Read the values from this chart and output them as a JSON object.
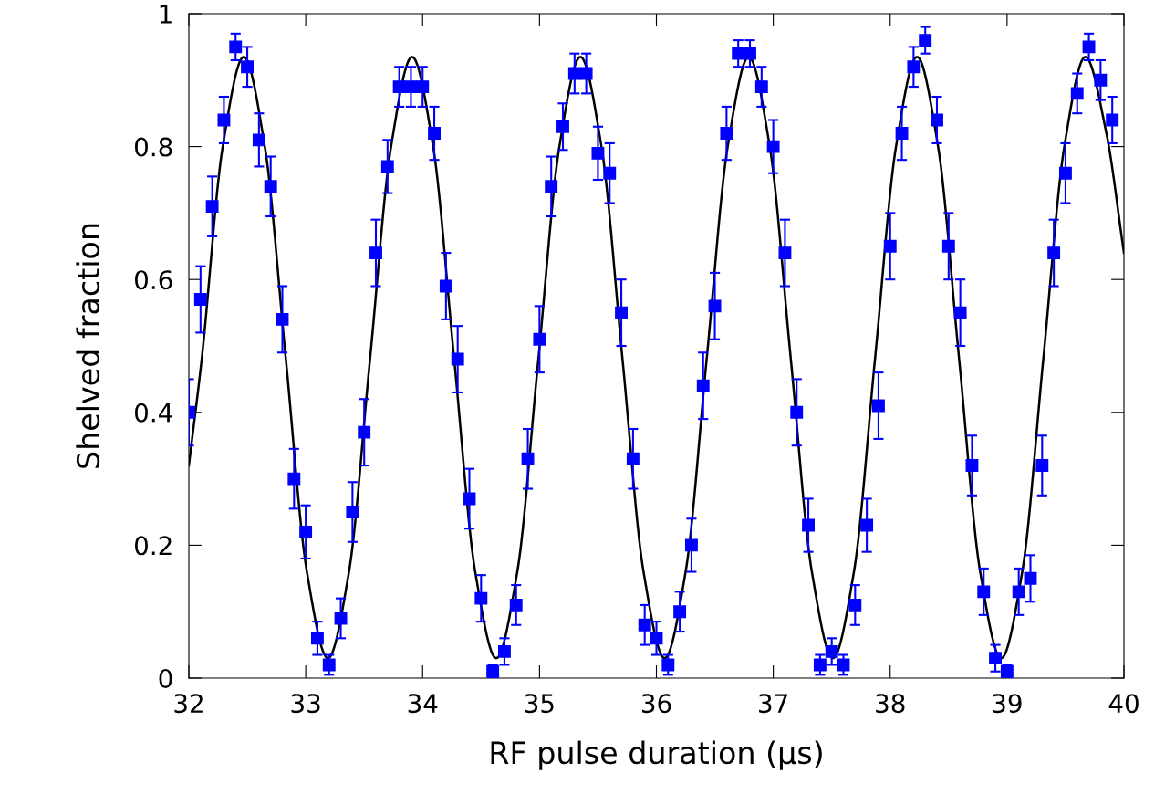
{
  "chart_data": {
    "type": "scatter",
    "xlabel": "RF pulse duration (μs)",
    "ylabel": "Shelved fraction",
    "xlim": [
      32,
      40
    ],
    "xticks": [
      32,
      33,
      34,
      35,
      36,
      37,
      38,
      39,
      40
    ],
    "ylim": [
      0,
      1
    ],
    "yticks": [
      0,
      {
        "value": 0.2,
        "label": "0.2"
      },
      {
        "value": 0.4,
        "label": "0.4"
      },
      {
        "value": 0.6,
        "label": "0.6"
      },
      {
        "value": 0.8,
        "label": "0.8"
      },
      1
    ],
    "grid": false,
    "legend": false,
    "series": [
      {
        "color": "#0000ff",
        "marker": "square",
        "x": [
          32.0,
          32.1,
          32.2,
          32.3,
          32.4,
          32.5,
          32.6,
          32.7,
          32.8,
          32.9,
          33.0,
          33.1,
          33.2,
          33.3,
          33.4,
          33.5,
          33.6,
          33.7,
          33.8,
          33.9,
          34.0,
          34.1,
          34.2,
          34.3,
          34.4,
          34.5,
          34.6,
          34.7,
          34.8,
          34.9,
          35.0,
          35.1,
          35.2,
          35.3,
          35.4,
          35.5,
          35.6,
          35.7,
          35.8,
          35.9,
          36.0,
          36.1,
          36.2,
          36.3,
          36.4,
          36.5,
          36.6,
          36.7,
          36.8,
          36.9,
          37.0,
          37.1,
          37.2,
          37.3,
          37.4,
          37.5,
          37.6,
          37.7,
          37.8,
          37.9,
          38.0,
          38.1,
          38.2,
          38.3,
          38.4,
          38.5,
          38.6,
          38.7,
          38.8,
          38.9,
          39.0,
          39.1,
          39.2,
          39.3,
          39.4,
          39.5,
          39.6,
          39.7,
          39.8,
          39.9
        ],
        "values": [
          0.4,
          0.57,
          0.71,
          0.84,
          0.95,
          0.92,
          0.81,
          0.74,
          0.54,
          0.3,
          0.22,
          0.06,
          0.02,
          0.09,
          0.25,
          0.37,
          0.64,
          0.77,
          0.89,
          0.89,
          0.89,
          0.82,
          0.59,
          0.48,
          0.27,
          0.12,
          0.01,
          0.04,
          0.11,
          0.33,
          0.51,
          0.74,
          0.83,
          0.91,
          0.91,
          0.79,
          0.76,
          0.55,
          0.33,
          0.08,
          0.06,
          0.02,
          0.1,
          0.2,
          0.44,
          0.56,
          0.82,
          0.94,
          0.94,
          0.89,
          0.8,
          0.64,
          0.4,
          0.23,
          0.02,
          0.04,
          0.02,
          0.11,
          0.23,
          0.41,
          0.65,
          0.82,
          0.92,
          0.96,
          0.84,
          0.65,
          0.55,
          0.32,
          0.13,
          0.03,
          0.01,
          0.13,
          0.15,
          0.32,
          0.64,
          0.76,
          0.88,
          0.95,
          0.9,
          0.84
        ],
        "errors": [
          0.05,
          0.05,
          0.045,
          0.035,
          0.02,
          0.03,
          0.04,
          0.045,
          0.05,
          0.045,
          0.04,
          0.025,
          0.015,
          0.03,
          0.045,
          0.05,
          0.05,
          0.04,
          0.03,
          0.03,
          0.03,
          0.04,
          0.05,
          0.05,
          0.045,
          0.035,
          0.01,
          0.02,
          0.03,
          0.045,
          0.05,
          0.045,
          0.035,
          0.03,
          0.03,
          0.04,
          0.045,
          0.05,
          0.045,
          0.03,
          0.025,
          0.015,
          0.03,
          0.04,
          0.05,
          0.05,
          0.04,
          0.02,
          0.02,
          0.03,
          0.04,
          0.05,
          0.05,
          0.04,
          0.015,
          0.02,
          0.015,
          0.03,
          0.04,
          0.05,
          0.05,
          0.04,
          0.03,
          0.02,
          0.035,
          0.05,
          0.05,
          0.045,
          0.035,
          0.02,
          0.01,
          0.035,
          0.035,
          0.045,
          0.05,
          0.045,
          0.03,
          0.02,
          0.03,
          0.035
        ]
      },
      {
        "type": "line",
        "color": "#000000",
        "marker": "none",
        "line_style": "solid",
        "x": [
          32.0,
          32.11,
          32.29,
          32.47,
          32.65,
          32.83,
          33.01,
          33.19,
          33.37,
          33.55,
          33.73,
          33.91,
          34.09,
          34.27,
          34.45,
          34.63,
          34.81,
          34.99,
          35.17,
          35.35,
          35.53,
          35.71,
          35.89,
          36.07,
          36.25,
          36.43,
          36.61,
          36.79,
          36.97,
          37.15,
          37.33,
          37.51,
          37.69,
          37.87,
          38.05,
          38.23,
          38.41,
          38.59,
          38.77,
          38.95,
          39.13,
          39.31,
          39.49,
          39.67,
          39.85,
          40.0
        ],
        "values": [
          0.32,
          0.48,
          0.8,
          0.935,
          0.8,
          0.48,
          0.16,
          0.03,
          0.16,
          0.48,
          0.8,
          0.935,
          0.8,
          0.48,
          0.16,
          0.03,
          0.16,
          0.48,
          0.8,
          0.935,
          0.8,
          0.48,
          0.16,
          0.03,
          0.16,
          0.48,
          0.8,
          0.935,
          0.8,
          0.48,
          0.16,
          0.03,
          0.16,
          0.48,
          0.8,
          0.935,
          0.8,
          0.48,
          0.16,
          0.03,
          0.16,
          0.48,
          0.8,
          0.935,
          0.82,
          0.64
        ]
      }
    ]
  }
}
